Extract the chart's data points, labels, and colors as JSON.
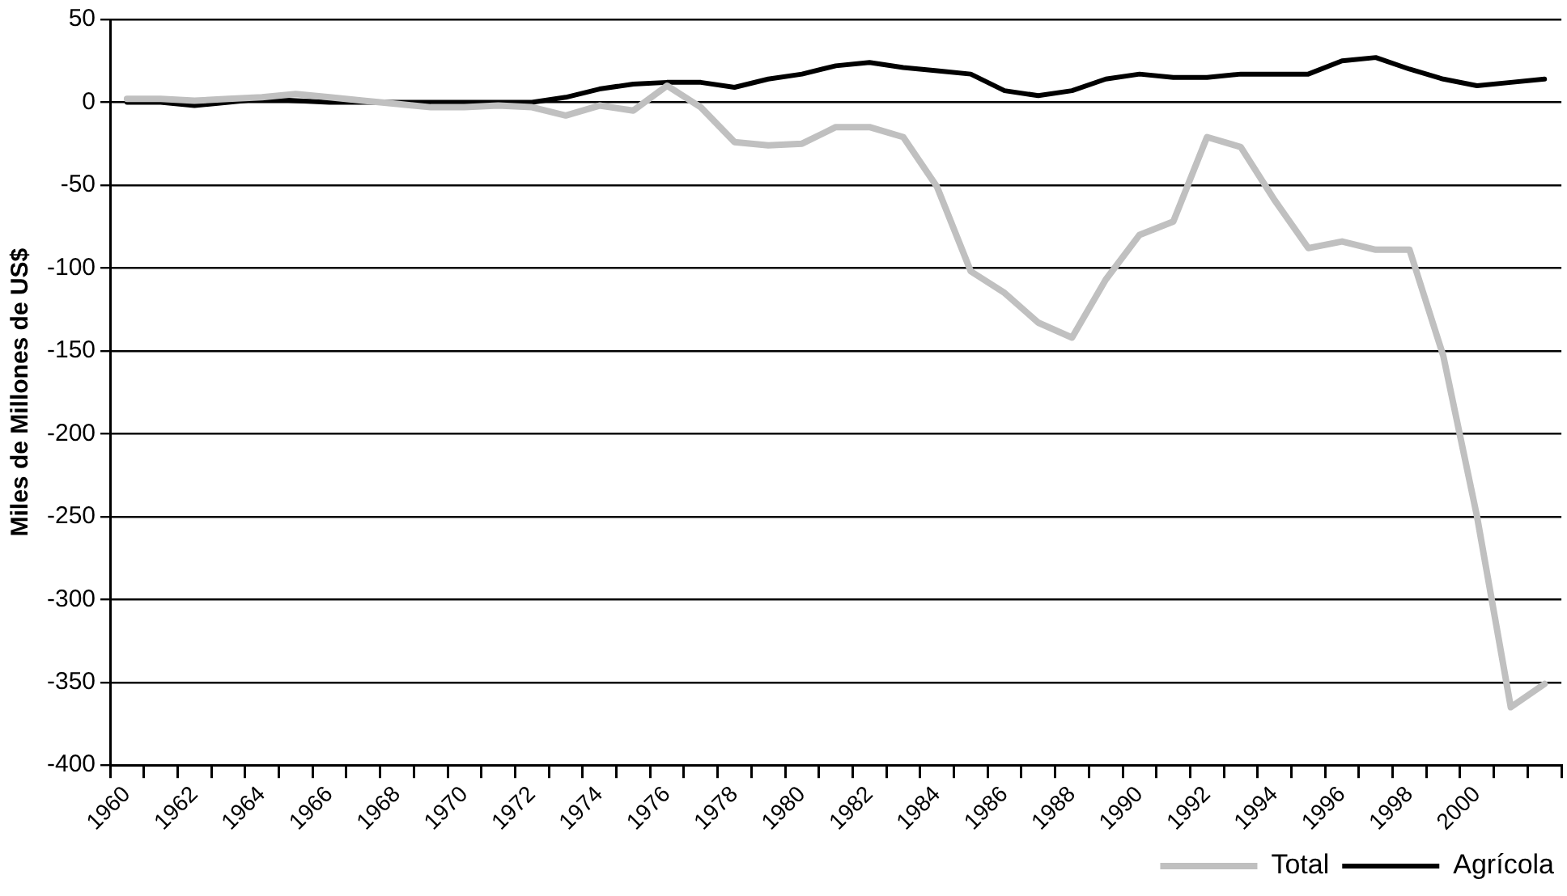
{
  "chart_data": {
    "type": "line",
    "ylabel": "Miles de Millones de US$",
    "categories": [
      "1960",
      null,
      "1962",
      null,
      "1964",
      null,
      "1966",
      null,
      "1968",
      null,
      "1970",
      null,
      "1972",
      null,
      "1974",
      null,
      "1976",
      null,
      "1978",
      null,
      "1980",
      null,
      "1982",
      null,
      "1984",
      null,
      "1986",
      null,
      "1988",
      null,
      "1990",
      null,
      "1992",
      null,
      "1994",
      null,
      "1996",
      null,
      "1998",
      null,
      "2000",
      null,
      null
    ],
    "series": [
      {
        "name": "Total",
        "color": "#c0c0c0",
        "values": [
          2,
          2,
          1,
          2,
          3,
          5,
          3,
          1,
          -1,
          -3,
          -3,
          -2,
          -3,
          -8,
          -2,
          -5,
          10,
          -3,
          -24,
          -26,
          -25,
          -15,
          -15,
          -21,
          -51,
          -102,
          -115,
          -133,
          -142,
          -107,
          -80,
          -72,
          -21,
          -27,
          -59,
          -88,
          -84,
          -89,
          -89,
          -153,
          -250,
          -365,
          -351
        ]
      },
      {
        "name": "Agrícola",
        "color": "#000000",
        "values": [
          0,
          0,
          -2,
          0,
          2,
          1,
          0,
          0,
          0,
          0,
          0,
          0,
          0,
          3,
          8,
          11,
          12,
          12,
          9,
          14,
          17,
          22,
          24,
          21,
          19,
          17,
          7,
          4,
          7,
          14,
          17,
          15,
          15,
          17,
          17,
          17,
          25,
          27,
          20,
          14,
          10,
          12,
          14
        ]
      }
    ],
    "ylim": [
      -400,
      50
    ],
    "yticks": [
      -400,
      -350,
      -300,
      -250,
      -200,
      -150,
      -100,
      -50,
      0,
      50
    ],
    "grid": "y",
    "legend": "bottom right",
    "marker": "none",
    "line_style": "solid"
  }
}
